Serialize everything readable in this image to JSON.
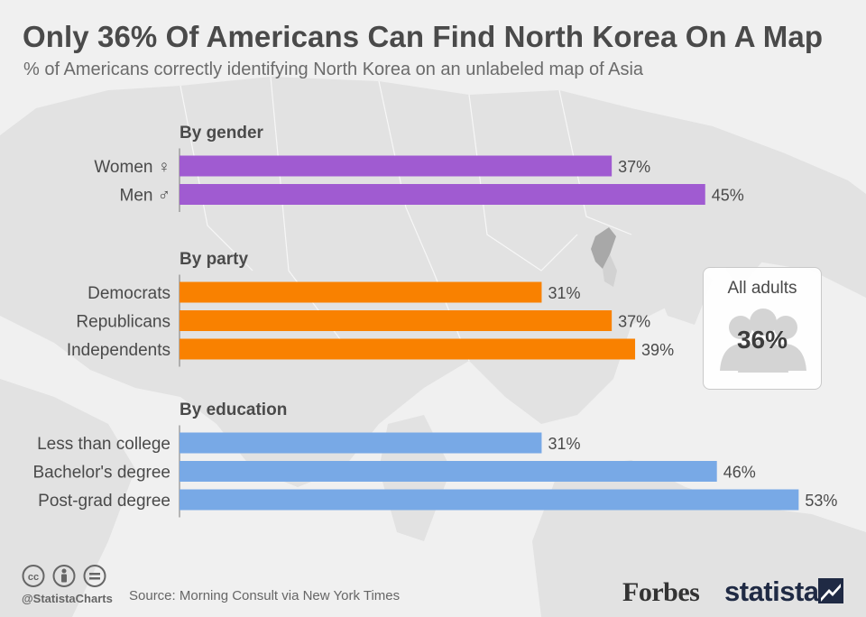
{
  "title": "Only 36% Of Americans Can Find North Korea On A Map",
  "subtitle": "% of Americans correctly identifying North Korea on an unlabeled map of Asia",
  "colors": {
    "gender": "#a05bd1",
    "party": "#f98100",
    "education": "#78a9e6",
    "background": "#f0f0f0",
    "text": "#4a4a4a"
  },
  "chart_data": {
    "type": "bar",
    "orientation": "horizontal",
    "value_suffix": "%",
    "groups": [
      {
        "name": "By gender",
        "color_key": "gender",
        "categories": [
          "Women ♀",
          "Men ♂"
        ],
        "values": [
          37,
          45
        ]
      },
      {
        "name": "By party",
        "color_key": "party",
        "categories": [
          "Democrats",
          "Republicans",
          "Independents"
        ],
        "values": [
          31,
          37,
          39
        ]
      },
      {
        "name": "By education",
        "color_key": "education",
        "categories": [
          "Less than college",
          "Bachelor's degree",
          "Post-grad degree"
        ],
        "values": [
          31,
          46,
          53
        ]
      }
    ],
    "grid": false,
    "legend": "none"
  },
  "summary": {
    "label": "All adults",
    "value": "36%",
    "icon": "people-icon"
  },
  "footer": {
    "license_icons": [
      "cc-icon",
      "attribution-icon",
      "no-derivatives-icon"
    ],
    "handle": "@StatistaCharts",
    "source": "Source: Morning Consult via New York Times",
    "forbes_logo": "Forbes",
    "statista_logo": "statista"
  }
}
